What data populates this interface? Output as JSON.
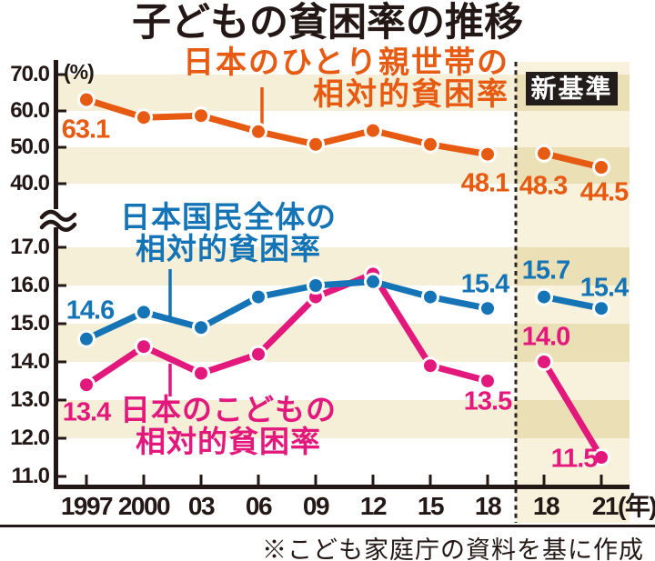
{
  "title": "子どもの貧困率の推移",
  "footer": {
    "note": "※こども家庭庁の資料を基に作成"
  },
  "colors": {
    "single_parent": "#e65a12",
    "overall": "#1574b6",
    "child": "#e2187d",
    "stripe_cream": "#f5efd8",
    "new_region_light": "#f8f2dc",
    "new_region_dark": "#ebdfb6",
    "ink": "#231815",
    "badge_bg": "#221d1b",
    "badge_text": "#ffffff"
  },
  "chart_data": {
    "type": "line",
    "title": "子どもの貧困率の推移",
    "unit": "(%)",
    "new_standard": "新基準",
    "axis_break": true,
    "x_old": [
      "1997",
      "2000",
      "03",
      "06",
      "09",
      "12",
      "15",
      "18"
    ],
    "x_new": [
      "18",
      "21(年)"
    ],
    "y_upper_ticks": {
      "values": [
        70,
        60,
        50,
        40
      ],
      "labels": [
        "70.0",
        "60.0",
        "50.0",
        "40.0"
      ]
    },
    "y_lower_ticks": {
      "values": [
        17,
        16,
        15,
        14,
        13,
        12,
        11
      ],
      "labels": [
        "17.0",
        "16.0",
        "15.0",
        "14.0",
        "13.0",
        "12.0",
        "11.0"
      ]
    },
    "series": [
      {
        "id": "single",
        "name": "日本のひとり親世帯の相対的貧困率",
        "label_lines": [
          "日本のひとり親世帯の",
          "相対的貧困率"
        ],
        "color": "#e65a12",
        "scale": "upper",
        "values_old": [
          63.1,
          58.2,
          58.7,
          54.3,
          50.8,
          54.6,
          50.8,
          48.1
        ],
        "values_new": [
          48.3,
          44.5
        ],
        "point_labels": [
          {
            "key": "o0",
            "text": "63.1"
          },
          {
            "key": "o7",
            "text": "48.1"
          },
          {
            "key": "n0",
            "text": "48.3"
          },
          {
            "key": "n1",
            "text": "44.5"
          }
        ]
      },
      {
        "id": "overall",
        "name": "日本国民全体の相対的貧困率",
        "label_lines": [
          "日本国民全体の",
          "相対的貧困率"
        ],
        "color": "#1574b6",
        "scale": "lower",
        "values_old": [
          14.6,
          15.3,
          14.9,
          15.7,
          16.0,
          16.1,
          15.7,
          15.4
        ],
        "values_new": [
          15.7,
          15.4
        ],
        "point_labels": [
          {
            "key": "o0",
            "text": "14.6"
          },
          {
            "key": "o7",
            "text": "15.4"
          },
          {
            "key": "n0",
            "text": "15.7"
          },
          {
            "key": "n1",
            "text": "15.4"
          }
        ]
      },
      {
        "id": "child",
        "name": "日本のこどもの相対的貧困率",
        "label_lines": [
          "日本のこどもの",
          "相対的貧困率"
        ],
        "color": "#e2187d",
        "scale": "lower",
        "values_old": [
          13.4,
          14.4,
          13.7,
          14.2,
          15.7,
          16.3,
          13.9,
          13.5
        ],
        "values_new": [
          14.0,
          11.5
        ],
        "point_labels": [
          {
            "key": "o0",
            "text": "13.4"
          },
          {
            "key": "o7",
            "text": "13.5"
          },
          {
            "key": "n0",
            "text": "14.0"
          },
          {
            "key": "n1",
            "text": "11.5"
          }
        ]
      }
    ]
  }
}
